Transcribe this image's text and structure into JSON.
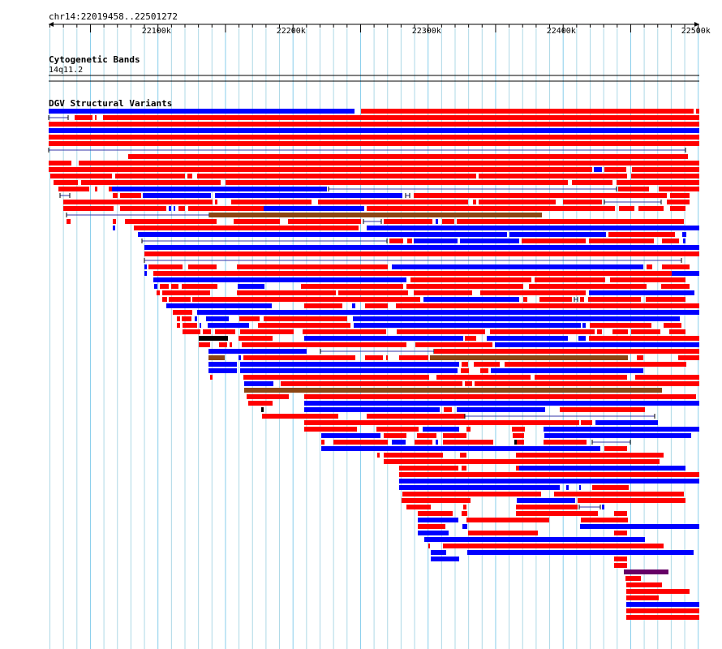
{
  "location": "chr14:22019458..22501272",
  "ruler": {
    "start": 22019458,
    "end": 22501272,
    "tick_labels": [
      "22100k",
      "22200k",
      "22300k",
      "22400k",
      "22500k"
    ]
  },
  "tracks": {
    "cyto": {
      "title": "Cytogenetic Bands",
      "band": "14q11.2"
    },
    "dgv": {
      "title": "DGV Structural Variants"
    }
  },
  "colors": {
    "gain": "#ff0000",
    "loss": "#0000ff",
    "inversion": "#8b4513",
    "complex": "#000000",
    "other": "#660066",
    "grid_major": "#87ceeb",
    "grid_minor": "#add8e6"
  }
}
